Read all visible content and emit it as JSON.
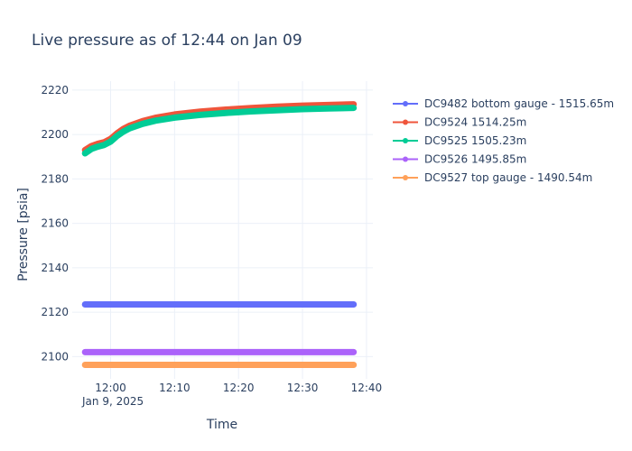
{
  "chart_data": {
    "type": "line",
    "title": "Live pressure as of 12:44 on Jan 09",
    "xlabel": "Time",
    "ylabel": "Pressure [psia]",
    "x_ticks": [
      "12:00",
      "12:10",
      "12:20",
      "12:30",
      "12:40"
    ],
    "x_date_label": "Jan 9, 2025",
    "xlim": [
      "2025-01-09 11:54",
      "2025-01-09 12:41"
    ],
    "x_range": [
      "2025-01-09 11:56",
      "2025-01-09 12:38"
    ],
    "y_ticks": [
      2100,
      2120,
      2140,
      2160,
      2180,
      2200,
      2220
    ],
    "ylim": [
      2090,
      2224
    ],
    "grid": true,
    "legend_position": "top-right",
    "series": [
      {
        "name": "DC9482 bottom gauge - 1515.65m",
        "color": "#636efa",
        "x": [
          "2025-01-09 11:56",
          "2025-01-09 12:38"
        ],
        "y": [
          2123.5,
          2123.5
        ]
      },
      {
        "name": "DC9524 1514.25m",
        "color": "#ef553b",
        "x": [
          "2025-01-09 11:56",
          "2025-01-09 11:57",
          "2025-01-09 11:58",
          "2025-01-09 11:59",
          "2025-01-09 12:00",
          "2025-01-09 12:01",
          "2025-01-09 12:02",
          "2025-01-09 12:03",
          "2025-01-09 12:05",
          "2025-01-09 12:07",
          "2025-01-09 12:10",
          "2025-01-09 12:14",
          "2025-01-09 12:18",
          "2025-01-09 12:22",
          "2025-01-09 12:26",
          "2025-01-09 12:30",
          "2025-01-09 12:34",
          "2025-01-09 12:38"
        ],
        "y": [
          2193,
          2194.8,
          2195.8,
          2196.5,
          2198,
          2200.5,
          2202.5,
          2204,
          2206,
          2207.5,
          2209,
          2210.3,
          2211.2,
          2211.9,
          2212.5,
          2213,
          2213.3,
          2213.6
        ]
      },
      {
        "name": "DC9525 1505.23m",
        "color": "#00cc96",
        "x": [
          "2025-01-09 11:56",
          "2025-01-09 11:57",
          "2025-01-09 11:58",
          "2025-01-09 11:59",
          "2025-01-09 12:00",
          "2025-01-09 12:01",
          "2025-01-09 12:02",
          "2025-01-09 12:03",
          "2025-01-09 12:05",
          "2025-01-09 12:07",
          "2025-01-09 12:10",
          "2025-01-09 12:14",
          "2025-01-09 12:18",
          "2025-01-09 12:22",
          "2025-01-09 12:26",
          "2025-01-09 12:30",
          "2025-01-09 12:34",
          "2025-01-09 12:38"
        ],
        "y": [
          2191.5,
          2193.5,
          2194.5,
          2195.3,
          2196.8,
          2199.3,
          2201.3,
          2202.8,
          2204.8,
          2206.2,
          2207.6,
          2208.8,
          2209.7,
          2210.4,
          2210.9,
          2211.4,
          2211.7,
          2212
        ]
      },
      {
        "name": "DC9526 1495.85m",
        "color": "#ab63fa",
        "x": [
          "2025-01-09 11:56",
          "2025-01-09 12:38"
        ],
        "y": [
          2102,
          2102
        ]
      },
      {
        "name": "DC9527 top gauge - 1490.54m",
        "color": "#ffa15a",
        "x": [
          "2025-01-09 11:56",
          "2025-01-09 12:38"
        ],
        "y": [
          2096.3,
          2096.3
        ]
      }
    ]
  }
}
